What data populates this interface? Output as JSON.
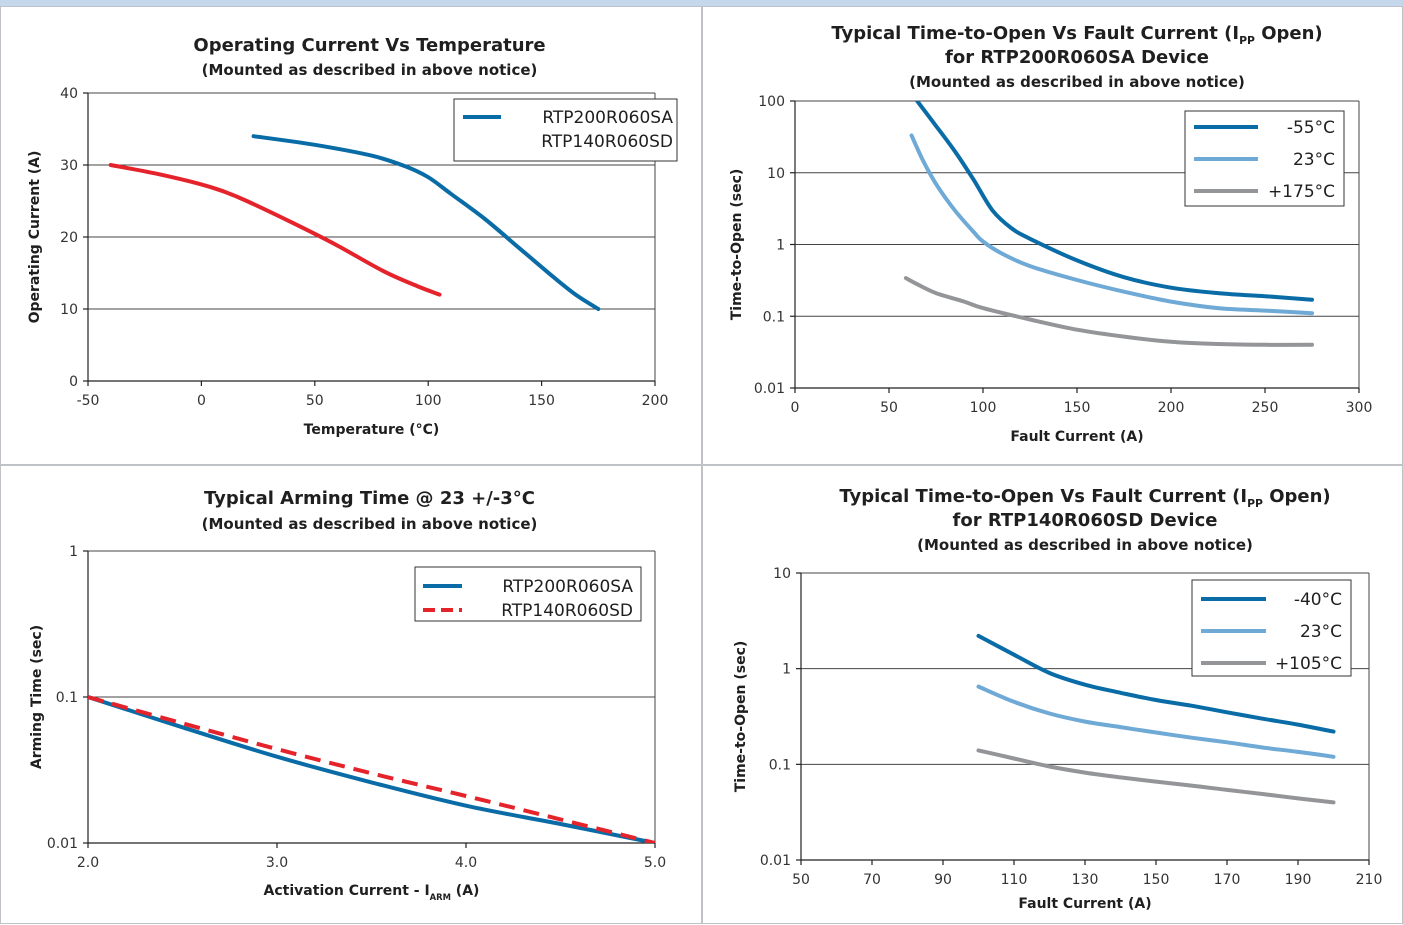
{
  "chart_data": [
    {
      "type": "line",
      "title": "Operating Current Vs Temperature",
      "subtitle": "(Mounted as described in above notice)",
      "xlabel": "Temperature (°C)",
      "ylabel": "Operating Current (A)",
      "xlim": [
        -50,
        200
      ],
      "ylim": [
        0,
        40
      ],
      "yscale": "linear",
      "xticks": [
        -50,
        0,
        50,
        100,
        150,
        200
      ],
      "yticks": [
        0,
        10,
        20,
        30,
        40
      ],
      "xtick_labels": [
        "-50",
        "0",
        "50",
        "100",
        "150",
        "200"
      ],
      "ytick_labels": [
        "0",
        "10",
        "20",
        "30",
        "40"
      ],
      "grid": "horizontal",
      "legend_position": "top-right",
      "legend": [
        "RTP200R060SA",
        "RTP140R060SD"
      ],
      "series": [
        {
          "name": "RTP200R060SA",
          "color": "#0a6ca6",
          "dash": "solid",
          "points": [
            [
              23,
              34
            ],
            [
              50,
              32.8
            ],
            [
              75,
              31.3
            ],
            [
              90,
              29.8
            ],
            [
              100,
              28.3
            ],
            [
              110,
              26
            ],
            [
              125,
              22.5
            ],
            [
              140,
              18.5
            ],
            [
              155,
              14.5
            ],
            [
              165,
              12
            ],
            [
              175,
              10
            ]
          ]
        },
        {
          "name": "RTP140R060SD",
          "color": "#e5232b",
          "dash": "solid",
          "points": [
            [
              -40,
              30
            ],
            [
              -20,
              28.8
            ],
            [
              0,
              27.3
            ],
            [
              10,
              26.3
            ],
            [
              20,
              25
            ],
            [
              40,
              22
            ],
            [
              60,
              18.8
            ],
            [
              80,
              15.3
            ],
            [
              95,
              13.2
            ],
            [
              105,
              12
            ]
          ]
        }
      ]
    },
    {
      "type": "line",
      "title": "Typical Time-to-Open Vs Fault Current (I",
      "title_sub": "PP",
      "title_tail": " Open)",
      "title2": "for RTP200R060SA Device",
      "subtitle": "(Mounted as described in above notice)",
      "xlabel": "Fault Current (A)",
      "ylabel": "Time-to-Open (sec)",
      "xlim": [
        0,
        300
      ],
      "ylim": [
        0.01,
        100
      ],
      "yscale": "log",
      "xticks": [
        0,
        50,
        100,
        150,
        200,
        250,
        300
      ],
      "yticks": [
        0.01,
        0.1,
        1,
        10,
        100
      ],
      "xtick_labels": [
        "0",
        "50",
        "100",
        "150",
        "200",
        "250",
        "300"
      ],
      "ytick_labels": [
        "0.01",
        "0.1",
        "1",
        "10",
        "100"
      ],
      "grid": "horizontal",
      "legend_position": "top-right",
      "legend": [
        "-55°C",
        "23°C",
        "+175°C"
      ],
      "series": [
        {
          "name": "-55°C",
          "color": "#0a6ca6",
          "dash": "solid",
          "points": [
            [
              65,
              100
            ],
            [
              75,
              45
            ],
            [
              85,
              20
            ],
            [
              95,
              8
            ],
            [
              105,
              3
            ],
            [
              115,
              1.7
            ],
            [
              125,
              1.2
            ],
            [
              150,
              0.6
            ],
            [
              175,
              0.35
            ],
            [
              200,
              0.25
            ],
            [
              225,
              0.21
            ],
            [
              250,
              0.19
            ],
            [
              275,
              0.17
            ]
          ]
        },
        {
          "name": "23°C",
          "color": "#6fa9d5",
          "dash": "solid",
          "points": [
            [
              62,
              33
            ],
            [
              68,
              15
            ],
            [
              75,
              7
            ],
            [
              85,
              3
            ],
            [
              95,
              1.5
            ],
            [
              100,
              1.1
            ],
            [
              110,
              0.75
            ],
            [
              125,
              0.5
            ],
            [
              150,
              0.32
            ],
            [
              175,
              0.22
            ],
            [
              200,
              0.16
            ],
            [
              225,
              0.13
            ],
            [
              250,
              0.12
            ],
            [
              275,
              0.11
            ]
          ]
        },
        {
          "name": "+175°C",
          "color": "#939598",
          "dash": "solid",
          "points": [
            [
              59,
              0.34
            ],
            [
              65,
              0.28
            ],
            [
              75,
              0.21
            ],
            [
              90,
              0.16
            ],
            [
              100,
              0.13
            ],
            [
              125,
              0.09
            ],
            [
              150,
              0.065
            ],
            [
              175,
              0.052
            ],
            [
              200,
              0.044
            ],
            [
              225,
              0.041
            ],
            [
              250,
              0.04
            ],
            [
              275,
              0.04
            ]
          ]
        }
      ]
    },
    {
      "type": "line",
      "title": "Typical Arming Time @ 23 +/-3°C",
      "subtitle": "(Mounted as described in above notice)",
      "xlabel": "Activation Current - I",
      "xlabel_sub": "ARM",
      "xlabel_tail": " (A)",
      "ylabel": "Arming Time (sec)",
      "xlim": [
        2.0,
        5.0
      ],
      "ylim": [
        0.01,
        1
      ],
      "yscale": "log",
      "xticks": [
        2.0,
        3.0,
        4.0,
        5.0
      ],
      "yticks": [
        0.01,
        0.1,
        1
      ],
      "xtick_labels": [
        "2.0",
        "3.0",
        "4.0",
        "5.0"
      ],
      "ytick_labels": [
        "0.01",
        "0.1",
        "1"
      ],
      "grid": "horizontal",
      "legend_position": "top-right",
      "legend": [
        "RTP200R060SA",
        "RTP140R060SD"
      ],
      "series": [
        {
          "name": "RTP200R060SA",
          "color": "#0a6ca6",
          "dash": "solid",
          "points": [
            [
              2.0,
              0.1
            ],
            [
              2.5,
              0.062
            ],
            [
              3.0,
              0.039
            ],
            [
              3.5,
              0.026
            ],
            [
              4.0,
              0.018
            ],
            [
              4.5,
              0.0135
            ],
            [
              5.0,
              0.01
            ]
          ]
        },
        {
          "name": "RTP140R060SD",
          "color": "#e5232b",
          "dash": "dashed",
          "points": [
            [
              2.0,
              0.1
            ],
            [
              2.5,
              0.066
            ],
            [
              3.0,
              0.044
            ],
            [
              3.5,
              0.03
            ],
            [
              4.0,
              0.021
            ],
            [
              4.5,
              0.0145
            ],
            [
              5.0,
              0.01
            ]
          ]
        }
      ]
    },
    {
      "type": "line",
      "title": "Typical Time-to-Open Vs Fault Current (I",
      "title_sub": "PP",
      "title_tail": " Open)",
      "title2": "for RTP140R060SD Device",
      "subtitle": "(Mounted as described in above notice)",
      "xlabel": "Fault Current (A)",
      "ylabel": "Time-to-Open (sec)",
      "xlim": [
        50,
        210
      ],
      "ylim": [
        0.01,
        10
      ],
      "yscale": "log",
      "xticks": [
        50,
        70,
        90,
        110,
        130,
        150,
        170,
        190,
        210
      ],
      "yticks": [
        0.01,
        0.1,
        1,
        10
      ],
      "xtick_labels": [
        "50",
        "70",
        "90",
        "110",
        "130",
        "150",
        "170",
        "190",
        "210"
      ],
      "ytick_labels": [
        "0.01",
        "0.1",
        "1",
        "10"
      ],
      "grid": "horizontal",
      "legend_position": "top-right",
      "legend": [
        "-40°C",
        "23°C",
        "+105°C"
      ],
      "series": [
        {
          "name": "-40°C",
          "color": "#0a6ca6",
          "dash": "solid",
          "points": [
            [
              100,
              2.2
            ],
            [
              110,
              1.4
            ],
            [
              120,
              0.9
            ],
            [
              130,
              0.68
            ],
            [
              140,
              0.56
            ],
            [
              150,
              0.47
            ],
            [
              160,
              0.41
            ],
            [
              170,
              0.35
            ],
            [
              180,
              0.3
            ],
            [
              190,
              0.26
            ],
            [
              200,
              0.22
            ]
          ]
        },
        {
          "name": "23°C",
          "color": "#6fa9d5",
          "dash": "solid",
          "points": [
            [
              100,
              0.65
            ],
            [
              110,
              0.45
            ],
            [
              120,
              0.34
            ],
            [
              130,
              0.28
            ],
            [
              140,
              0.245
            ],
            [
              150,
              0.215
            ],
            [
              160,
              0.19
            ],
            [
              170,
              0.17
            ],
            [
              180,
              0.15
            ],
            [
              190,
              0.135
            ],
            [
              200,
              0.12
            ]
          ]
        },
        {
          "name": "+105°C",
          "color": "#939598",
          "dash": "solid",
          "points": [
            [
              100,
              0.14
            ],
            [
              110,
              0.115
            ],
            [
              120,
              0.095
            ],
            [
              130,
              0.082
            ],
            [
              140,
              0.073
            ],
            [
              150,
              0.066
            ],
            [
              160,
              0.06
            ],
            [
              170,
              0.054
            ],
            [
              180,
              0.049
            ],
            [
              190,
              0.044
            ],
            [
              200,
              0.04
            ]
          ]
        }
      ]
    }
  ]
}
